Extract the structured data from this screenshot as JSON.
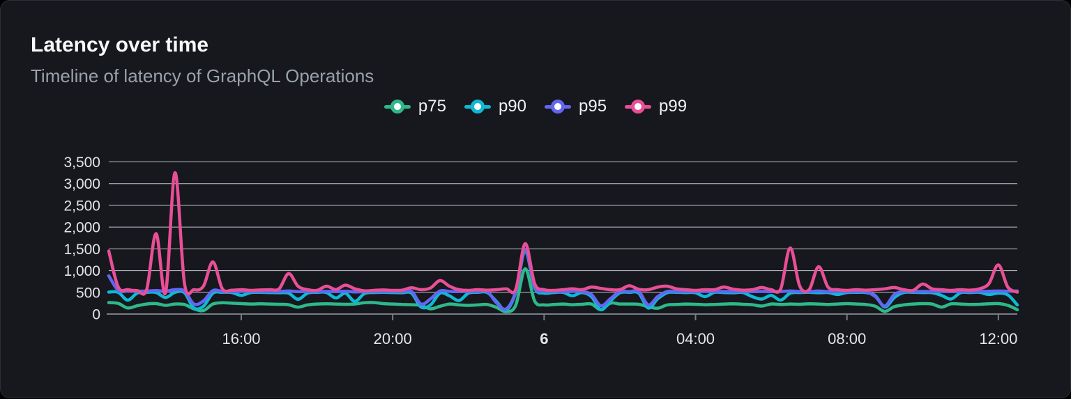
{
  "header": {
    "title": "Latency over time",
    "subtitle": "Timeline of latency of GraphQL Operations"
  },
  "theme": {
    "page_bg": "#000000",
    "card_bg": "#16181d",
    "card_border": "#2b2f36",
    "grid_color": "#c4c8ce",
    "axis_color": "#777c85",
    "axis_label_color": "#e3e6e9",
    "title_color": "#f7f8f9",
    "subtitle_color": "#9aa1ab"
  },
  "chart_data": {
    "type": "line",
    "title": "Latency over time",
    "legend_position": "top",
    "grid": "horizontal",
    "x_axis": {
      "start": "12:30",
      "step_minutes": 15,
      "points": 97,
      "ticks": [
        {
          "index": 14,
          "label": "16:00",
          "bold": false
        },
        {
          "index": 30,
          "label": "20:00",
          "bold": false
        },
        {
          "index": 46,
          "label": "6",
          "bold": true
        },
        {
          "index": 62,
          "label": "04:00",
          "bold": false
        },
        {
          "index": 78,
          "label": "08:00",
          "bold": false
        },
        {
          "index": 94,
          "label": "12:00",
          "bold": false
        }
      ]
    },
    "y_axis": {
      "min": 0,
      "max": 3500,
      "tick_step": 500,
      "tick_labels": [
        "0",
        "500",
        "1,000",
        "1,500",
        "2,000",
        "2,500",
        "3,000",
        "3,500"
      ]
    },
    "series": [
      {
        "name": "p75",
        "color": "#2eb88a",
        "values": [
          265,
          245,
          140,
          190,
          230,
          240,
          200,
          230,
          220,
          120,
          80,
          230,
          260,
          250,
          240,
          230,
          235,
          230,
          225,
          215,
          160,
          210,
          230,
          235,
          230,
          225,
          230,
          260,
          265,
          240,
          230,
          220,
          215,
          200,
          120,
          180,
          230,
          210,
          200,
          210,
          220,
          150,
          55,
          200,
          1040,
          300,
          210,
          220,
          230,
          215,
          225,
          230,
          100,
          250,
          230,
          230,
          225,
          170,
          135,
          210,
          220,
          230,
          225,
          215,
          220,
          230,
          235,
          225,
          215,
          185,
          230,
          220,
          230,
          225,
          235,
          230,
          220,
          230,
          240,
          230,
          220,
          180,
          60,
          170,
          210,
          230,
          240,
          230,
          160,
          235,
          230,
          220,
          225,
          235,
          240,
          200,
          100
        ]
      },
      {
        "name": "p90",
        "color": "#0fb8d4",
        "values": [
          505,
          500,
          320,
          480,
          500,
          495,
          380,
          500,
          490,
          140,
          180,
          480,
          500,
          495,
          430,
          495,
          500,
          495,
          490,
          480,
          340,
          480,
          500,
          495,
          370,
          480,
          290,
          470,
          495,
          500,
          495,
          490,
          480,
          160,
          210,
          480,
          420,
          310,
          480,
          500,
          495,
          280,
          90,
          500,
          1450,
          600,
          480,
          495,
          500,
          420,
          495,
          400,
          100,
          300,
          490,
          500,
          480,
          140,
          350,
          490,
          500,
          495,
          490,
          400,
          500,
          495,
          490,
          495,
          400,
          345,
          430,
          320,
          480,
          495,
          500,
          490,
          495,
          450,
          495,
          500,
          495,
          420,
          160,
          380,
          495,
          500,
          495,
          490,
          430,
          345,
          490,
          495,
          500,
          450,
          480,
          440,
          210
        ]
      },
      {
        "name": "p95",
        "color": "#6366f1",
        "values": [
          880,
          545,
          530,
          525,
          530,
          540,
          525,
          560,
          530,
          230,
          300,
          540,
          520,
          515,
          520,
          525,
          520,
          515,
          520,
          530,
          515,
          520,
          515,
          520,
          515,
          525,
          510,
          515,
          520,
          515,
          520,
          515,
          520,
          230,
          350,
          530,
          520,
          515,
          520,
          515,
          520,
          250,
          120,
          520,
          1490,
          620,
          530,
          520,
          515,
          520,
          515,
          450,
          190,
          350,
          520,
          515,
          520,
          210,
          400,
          520,
          515,
          520,
          515,
          520,
          515,
          520,
          515,
          520,
          515,
          520,
          515,
          520,
          530,
          520,
          515,
          530,
          515,
          520,
          515,
          520,
          515,
          400,
          185,
          450,
          520,
          515,
          520,
          515,
          520,
          515,
          520,
          515,
          520,
          525,
          530,
          525,
          530
        ]
      },
      {
        "name": "p99",
        "color": "#e84f96",
        "values": [
          1450,
          620,
          560,
          540,
          560,
          1850,
          490,
          3250,
          700,
          560,
          640,
          1200,
          580,
          550,
          560,
          545,
          555,
          560,
          580,
          930,
          640,
          560,
          545,
          640,
          565,
          665,
          580,
          535,
          545,
          555,
          545,
          550,
          605,
          560,
          600,
          770,
          640,
          560,
          545,
          560,
          550,
          560,
          580,
          565,
          1620,
          700,
          560,
          545,
          560,
          580,
          560,
          620,
          590,
          560,
          560,
          650,
          570,
          560,
          620,
          640,
          580,
          560,
          545,
          560,
          560,
          620,
          570,
          550,
          560,
          610,
          560,
          580,
          1520,
          650,
          560,
          1090,
          620,
          560,
          545,
          560,
          550,
          560,
          580,
          610,
          560,
          545,
          690,
          580,
          560,
          545,
          560,
          550,
          580,
          700,
          1130,
          620,
          505
        ]
      }
    ]
  }
}
